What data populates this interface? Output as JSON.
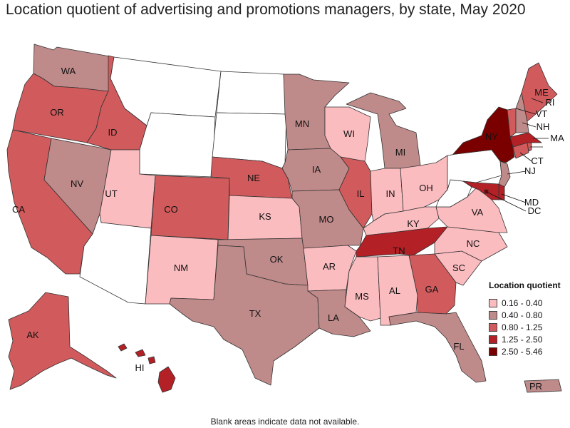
{
  "title": "Location quotient of advertising and promotions managers, by state, May 2020",
  "footer": "Blank areas indicate data not available.",
  "colors": {
    "blank": "#ffffff",
    "c1": "#fbbcc0",
    "c2": "#bf8a8a",
    "c3": "#d15a5c",
    "c4": "#b32026",
    "c5": "#7a0000",
    "border": "#333333"
  },
  "legend": {
    "title": "Location quotient",
    "items": [
      {
        "label": "0.16 - 0.40",
        "color": "#fbbcc0"
      },
      {
        "label": "0.40 - 0.80",
        "color": "#bf8a8a"
      },
      {
        "label": "0.80 - 1.25",
        "color": "#d15a5c"
      },
      {
        "label": "1.25 - 2.50",
        "color": "#b32026"
      },
      {
        "label": "2.50 - 5.46",
        "color": "#7a0000"
      }
    ]
  },
  "states": {
    "WA": "c2",
    "OR": "c3",
    "CA": "c3",
    "ID": "c3",
    "NV": "c2",
    "UT": "c1",
    "AZ": "blank",
    "MT": "blank",
    "WY": "blank",
    "CO": "c3",
    "NM": "c1",
    "ND": "blank",
    "SD": "blank",
    "NE": "c3",
    "KS": "c1",
    "OK": "c2",
    "TX": "c2",
    "MN": "c2",
    "IA": "c2",
    "MO": "c2",
    "AR": "c1",
    "LA": "c2",
    "WI": "c1",
    "IL": "c3",
    "MI": "c2",
    "IN": "c1",
    "OH": "c1",
    "KY": "c1",
    "TN": "c4",
    "MS": "c1",
    "AL": "c1",
    "GA": "c3",
    "FL": "c2",
    "SC": "c1",
    "NC": "c1",
    "VA": "c1",
    "WV": "blank",
    "PA": "blank",
    "NY": "c5",
    "VT": "c3",
    "NH": "c2",
    "ME": "c3",
    "MA": "c4",
    "RI": "c3",
    "CT": "c3",
    "NJ": "c2",
    "DE": "c4",
    "MD": "c4",
    "DC": "c5",
    "AK": "c3",
    "HI": "c4",
    "PR": "c2"
  }
}
